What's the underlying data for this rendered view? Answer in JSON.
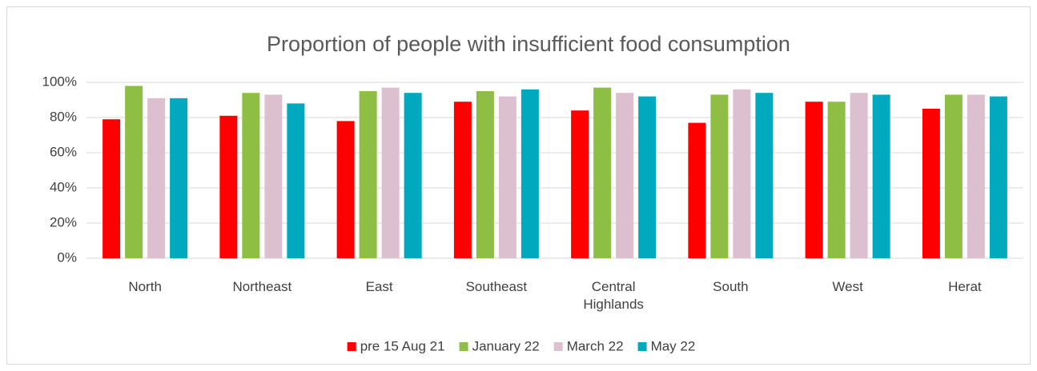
{
  "chart_data": {
    "type": "bar",
    "title": "Proportion of people with insufficient  food consumption",
    "categories": [
      "North",
      "Northeast",
      "East",
      "Southeast",
      "Central Highlands",
      "South",
      "West",
      "Herat"
    ],
    "series": [
      {
        "name": "pre 15 Aug 21",
        "color": "#ff0000",
        "values": [
          79,
          81,
          78,
          89,
          84,
          77,
          89,
          85
        ]
      },
      {
        "name": "January 22",
        "color": "#8fbe45",
        "values": [
          98,
          94,
          95,
          95,
          97,
          93,
          89,
          93
        ]
      },
      {
        "name": "March 22",
        "color": "#dcc0cf",
        "values": [
          91,
          93,
          97,
          92,
          94,
          96,
          94,
          93
        ]
      },
      {
        "name": "May 22",
        "color": "#00a9bd",
        "values": [
          91,
          88,
          94,
          96,
          92,
          94,
          93,
          92
        ]
      }
    ],
    "ylim": [
      0,
      100
    ],
    "yticks": [
      {
        "value": 0,
        "label": "0%"
      },
      {
        "value": 20,
        "label": "20%"
      },
      {
        "value": 40,
        "label": "40%"
      },
      {
        "value": 60,
        "label": "60%"
      },
      {
        "value": 80,
        "label": "80%"
      },
      {
        "value": 100,
        "label": "100%"
      }
    ],
    "grid": true,
    "legend": "bottom"
  }
}
